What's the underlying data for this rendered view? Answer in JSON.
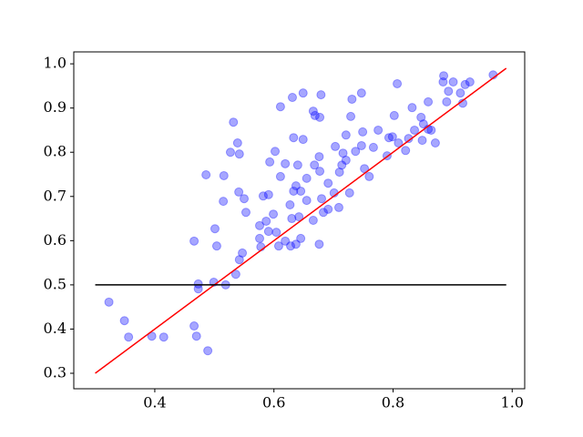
{
  "chart_data": {
    "type": "scatter",
    "x": [
      0.323,
      0.349,
      0.356,
      0.395,
      0.415,
      0.466,
      0.47,
      0.489,
      0.466,
      0.473,
      0.473,
      0.499,
      0.519,
      0.501,
      0.504,
      0.486,
      0.516,
      0.515,
      0.527,
      0.532,
      0.539,
      0.542,
      0.541,
      0.55,
      0.553,
      0.542,
      0.547,
      0.536,
      0.578,
      0.576,
      0.576,
      0.582,
      0.591,
      0.587,
      0.591,
      0.602,
      0.593,
      0.599,
      0.604,
      0.608,
      0.611,
      0.619,
      0.611,
      0.631,
      0.649,
      0.633,
      0.649,
      0.64,
      0.633,
      0.627,
      0.63,
      0.619,
      0.628,
      0.637,
      0.645,
      0.637,
      0.645,
      0.642,
      0.655,
      0.655,
      0.666,
      0.669,
      0.679,
      0.677,
      0.668,
      0.676,
      0.677,
      0.666,
      0.676,
      0.68,
      0.683,
      0.691,
      0.691,
      0.701,
      0.703,
      0.71,
      0.716,
      0.721,
      0.727,
      0.731,
      0.729,
      0.737,
      0.747,
      0.747,
      0.752,
      0.76,
      0.767,
      0.79,
      0.793,
      0.799,
      0.802,
      0.807,
      0.809,
      0.821,
      0.826,
      0.832,
      0.836,
      0.847,
      0.849,
      0.851,
      0.859,
      0.859,
      0.864,
      0.871,
      0.884,
      0.885,
      0.89,
      0.893,
      0.901,
      0.913,
      0.917,
      0.921,
      0.929,
      0.968,
      0.709,
      0.714,
      0.721,
      0.749,
      0.775
    ],
    "values": [
      0.461,
      0.419,
      0.382,
      0.384,
      0.382,
      0.407,
      0.384,
      0.351,
      0.599,
      0.502,
      0.491,
      0.506,
      0.5,
      0.627,
      0.588,
      0.749,
      0.747,
      0.689,
      0.8,
      0.868,
      0.821,
      0.796,
      0.71,
      0.695,
      0.664,
      0.557,
      0.572,
      0.524,
      0.586,
      0.605,
      0.634,
      0.701,
      0.704,
      0.644,
      0.621,
      0.802,
      0.778,
      0.66,
      0.619,
      0.588,
      0.745,
      0.774,
      0.903,
      0.924,
      0.934,
      0.833,
      0.829,
      0.771,
      0.712,
      0.681,
      0.65,
      0.599,
      0.588,
      0.592,
      0.605,
      0.724,
      0.712,
      0.654,
      0.691,
      0.741,
      0.893,
      0.883,
      0.93,
      0.879,
      0.771,
      0.79,
      0.757,
      0.646,
      0.592,
      0.695,
      0.664,
      0.73,
      0.671,
      0.708,
      0.813,
      0.755,
      0.798,
      0.839,
      0.708,
      0.92,
      0.881,
      0.802,
      0.934,
      0.815,
      0.763,
      0.745,
      0.811,
      0.792,
      0.833,
      0.835,
      0.883,
      0.955,
      0.821,
      0.804,
      0.831,
      0.901,
      0.85,
      0.879,
      0.827,
      0.864,
      0.914,
      0.852,
      0.85,
      0.821,
      0.959,
      0.973,
      0.914,
      0.938,
      0.959,
      0.934,
      0.911,
      0.953,
      0.959,
      0.975,
      0.675,
      0.771,
      0.782,
      0.846,
      0.85
    ],
    "color": "#0000ff",
    "opacity": 0.35,
    "lines": [
      {
        "x": [
          0.3,
          0.99
        ],
        "values": [
          0.3,
          0.99
        ],
        "color": "#ff0000"
      },
      {
        "x": [
          0.3,
          0.99
        ],
        "values": [
          0.5,
          0.5
        ],
        "color": "#000000"
      }
    ],
    "xlim": [
      0.264,
      1.021
    ],
    "ylim": [
      0.265,
      1.027
    ],
    "xticks": [
      0.4,
      0.6,
      0.8,
      {
        "value": 1.0,
        "label": "1.0"
      }
    ],
    "yticks": [
      0.3,
      0.4,
      0.5,
      0.6,
      0.7,
      0.8,
      0.9,
      {
        "value": 1.0,
        "label": "1.0"
      }
    ]
  }
}
